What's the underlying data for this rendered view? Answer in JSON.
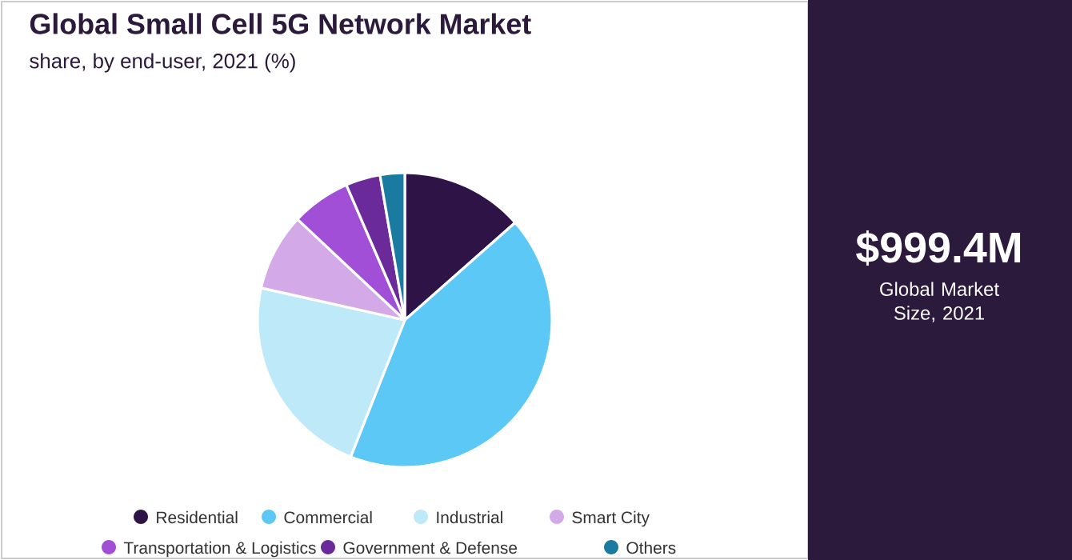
{
  "chart_data": {
    "type": "pie",
    "title": "Global Small Cell 5G Network Market",
    "subtitle": "share, by end-user, 2021 (%)",
    "categories": [
      "Residential",
      "Commercial",
      "Industrial",
      "Smart City",
      "Transportation & Logistics",
      "Government & Defense",
      "Others"
    ],
    "values": [
      13.5,
      42.5,
      22.5,
      8.5,
      6.5,
      3.8,
      2.7
    ],
    "colors": [
      "#2e1346",
      "#5bc8f5",
      "#bde9f9",
      "#d4a9e8",
      "#a04fd6",
      "#6a2a9a",
      "#1a7aa0"
    ],
    "legend": "bottom",
    "annotations": [
      "$999.4M",
      "Global Market Size, 2021"
    ]
  }
}
